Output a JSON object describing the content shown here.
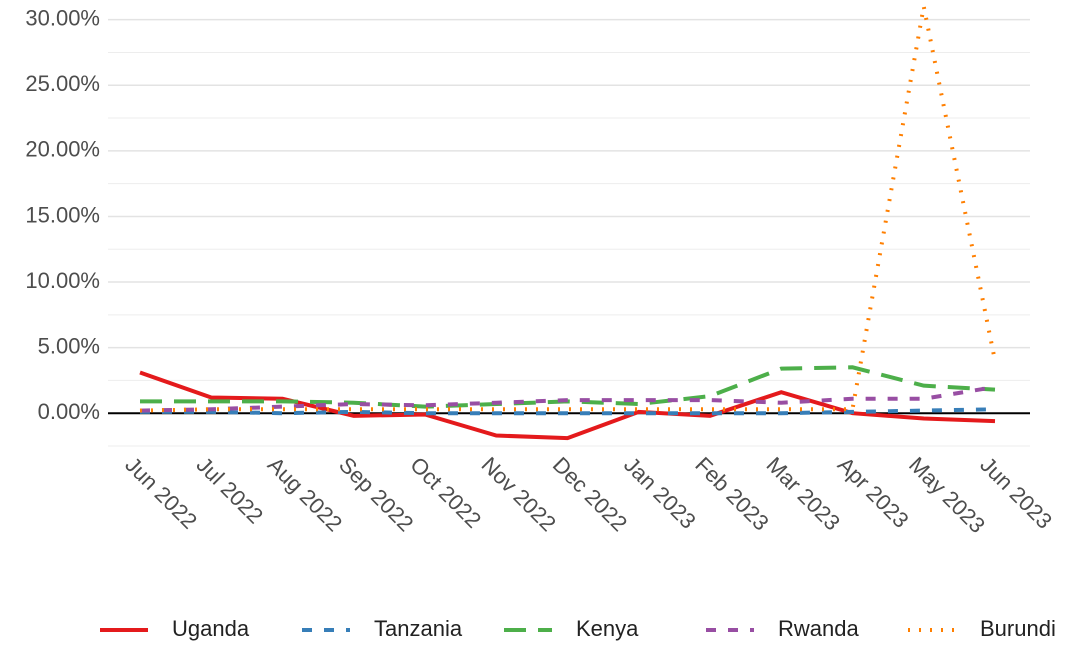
{
  "chart_data": {
    "type": "line",
    "x": [
      "Jun 2022",
      "Jul 2022",
      "Aug 2022",
      "Sep 2022",
      "Oct 2022",
      "Nov 2022",
      "Dec 2022",
      "Jan 2023",
      "Feb 2023",
      "Mar 2023",
      "Apr 2023",
      "May 2023",
      "Jun 2023"
    ],
    "series": [
      {
        "name": "Uganda",
        "color": "#e41a1c",
        "dash": "solid",
        "values": [
          3.1,
          1.2,
          1.1,
          -0.2,
          -0.1,
          -1.7,
          -1.9,
          0.1,
          -0.2,
          1.6,
          0.0,
          -0.4,
          -0.6
        ]
      },
      {
        "name": "Tanzania",
        "color": "#377eb8",
        "dash": "dashed",
        "values": [
          0.1,
          0.1,
          0.0,
          0.1,
          0.0,
          0.0,
          0.0,
          0.0,
          0.0,
          0.0,
          0.1,
          0.2,
          0.3
        ]
      },
      {
        "name": "Kenya",
        "color": "#4daf4a",
        "dash": "longdash",
        "values": [
          0.9,
          0.9,
          0.9,
          0.8,
          0.5,
          0.7,
          0.9,
          0.7,
          1.3,
          3.4,
          3.5,
          2.1,
          1.8
        ]
      },
      {
        "name": "Rwanda",
        "color": "#984ea3",
        "dash": "dashed",
        "values": [
          0.2,
          0.3,
          0.5,
          0.7,
          0.6,
          0.8,
          1.0,
          1.0,
          1.0,
          0.8,
          1.1,
          1.1,
          2.0
        ]
      },
      {
        "name": "Burundi",
        "color": "#ff7f00",
        "dash": "dotted",
        "values": [
          0.2,
          0.3,
          0.3,
          0.3,
          0.3,
          0.3,
          0.3,
          0.3,
          0.3,
          0.3,
          0.3,
          31.0,
          4.0
        ]
      }
    ],
    "ylim": [
      -2.5,
      31.5
    ],
    "yticks": [
      {
        "value": 0,
        "label": "0.00%"
      },
      {
        "value": 5,
        "label": "5.00%"
      },
      {
        "value": 10,
        "label": "10.00%"
      },
      {
        "value": 15,
        "label": "15.00%"
      },
      {
        "value": 20,
        "label": "20.00%"
      },
      {
        "value": 25,
        "label": "25.00%"
      },
      {
        "value": 30,
        "label": "30.00%"
      }
    ],
    "yticks_minor": [
      -2.5,
      2.5,
      7.5,
      12.5,
      17.5,
      22.5,
      27.5
    ],
    "grid": true,
    "zero_line": true,
    "legend": "bottom"
  }
}
